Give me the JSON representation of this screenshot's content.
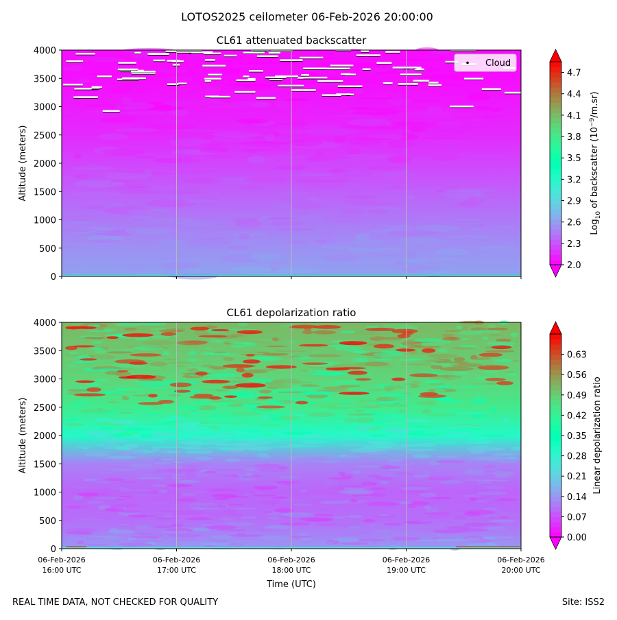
{
  "suptitle": "LOTOS2025 ceilometer 06-Feb-2026 20:00:00",
  "footer_left": "REAL TIME DATA, NOT CHECKED FOR QUALITY",
  "footer_right": "Site: ISS2",
  "xlabel": "Time (UTC)",
  "x_ticks": [
    {
      "date": "06-Feb-2026",
      "time": "16:00 UTC"
    },
    {
      "date": "06-Feb-2026",
      "time": "17:00 UTC"
    },
    {
      "date": "06-Feb-2026",
      "time": "18:00 UTC"
    },
    {
      "date": "06-Feb-2026",
      "time": "19:00 UTC"
    },
    {
      "date": "06-Feb-2026",
      "time": "20:00 UTC"
    }
  ],
  "chart_data": [
    {
      "type": "heatmap",
      "title": "CL61 attenuated backscatter",
      "ylabel": "Altitude (meters)",
      "xlim": [
        "06-Feb-2026 16:00 UTC",
        "06-Feb-2026 20:00 UTC"
      ],
      "ylim": [
        0,
        4000
      ],
      "y_ticks": [
        0,
        500,
        1000,
        1500,
        2000,
        2500,
        3000,
        3500,
        4000
      ],
      "colorbar": {
        "label_main": "Log",
        "label_sub": "10",
        "label_rest": " of backscatter (10",
        "label_sup": "−9",
        "label_end": "/m.sr)",
        "ticks": [
          "2.0",
          "2.3",
          "2.6",
          "2.9",
          "3.2",
          "3.5",
          "3.8",
          "4.1",
          "4.4",
          "4.7"
        ],
        "range": [
          2.0,
          4.85
        ],
        "colormap": "rainbow",
        "extend": "both"
      },
      "legend": {
        "entries": [
          "Cloud"
        ],
        "placement": "top-right"
      },
      "grid": "vertical gridlines at hourly ticks",
      "profile_by_altitude": [
        {
          "altitude": 0,
          "value": 2.62
        },
        {
          "altitude": 500,
          "value": 2.55
        },
        {
          "altitude": 1000,
          "value": 2.45
        },
        {
          "altitude": 1500,
          "value": 2.35
        },
        {
          "altitude": 2000,
          "value": 2.25
        },
        {
          "altitude": 2500,
          "value": 2.15
        },
        {
          "altitude": 3000,
          "value": 2.1
        },
        {
          "altitude": 3500,
          "value": 2.05
        },
        {
          "altitude": 4000,
          "value": 2.05
        }
      ],
      "cloud_altitude_range": [
        2900,
        4000
      ]
    },
    {
      "type": "heatmap",
      "title": "CL61 depolarization ratio",
      "ylabel": "Altitude (meters)",
      "xlim": [
        "06-Feb-2026 16:00 UTC",
        "06-Feb-2026 20:00 UTC"
      ],
      "ylim": [
        0,
        4000
      ],
      "y_ticks": [
        0,
        500,
        1000,
        1500,
        2000,
        2500,
        3000,
        3500,
        4000
      ],
      "colorbar": {
        "label": "Linear depolarization ratio",
        "ticks": [
          "0.00",
          "0.07",
          "0.14",
          "0.21",
          "0.28",
          "0.35",
          "0.42",
          "0.49",
          "0.56",
          "0.63"
        ],
        "range": [
          0.0,
          0.7
        ],
        "colormap": "rainbow",
        "extend": "both"
      },
      "grid": "vertical gridlines at hourly ticks",
      "profile_by_altitude": [
        {
          "altitude": 0,
          "value": 0.14
        },
        {
          "altitude": 500,
          "value": 0.1
        },
        {
          "altitude": 1000,
          "value": 0.09
        },
        {
          "altitude": 1500,
          "value": 0.12
        },
        {
          "altitude": 2000,
          "value": 0.3
        },
        {
          "altitude": 2500,
          "value": 0.44
        },
        {
          "altitude": 3000,
          "value": 0.48
        },
        {
          "altitude": 3500,
          "value": 0.5
        },
        {
          "altitude": 4000,
          "value": 0.52
        }
      ]
    }
  ]
}
